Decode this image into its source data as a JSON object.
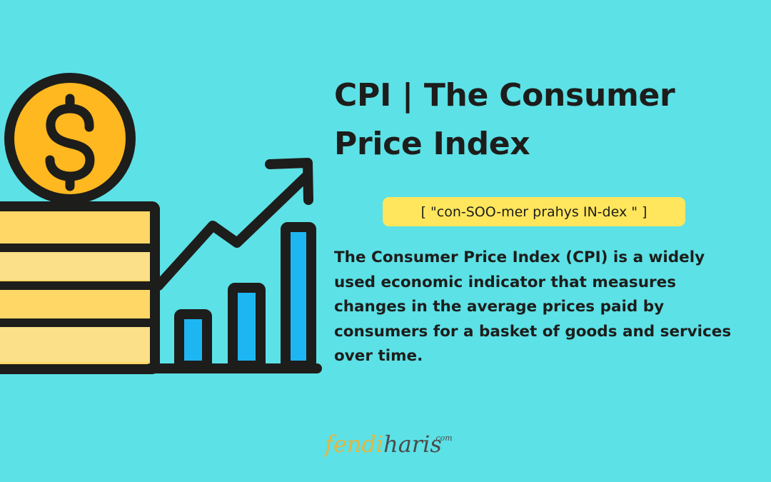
{
  "title": "CPI | The Consumer Price Index",
  "pronunciation": "[ \"con-SOO-mer prahys IN-dex \" ]",
  "description": "The Consumer Price Index (CPI) is a widely used economic indicator that measures changes in the average prices paid by consumers for a basket of goods and services over time.",
  "logo": {
    "part1": "fendi",
    "part2": "haris",
    "tld": ".com"
  },
  "illustration": {
    "coin_symbol": "$",
    "bar_levels": [
      1,
      2,
      3
    ]
  },
  "colors": {
    "background": "#5ce1e6",
    "outline": "#1d1d1b",
    "coin": "#ffb81f",
    "coin_stack": "#ffd766",
    "coin_stack_alt": "#fbe089",
    "bars": "#1eb6f2",
    "pronunciation_highlight": "#ffe65c",
    "logo_accent": "#e7b53e",
    "logo_dark": "#4b4b4b"
  }
}
